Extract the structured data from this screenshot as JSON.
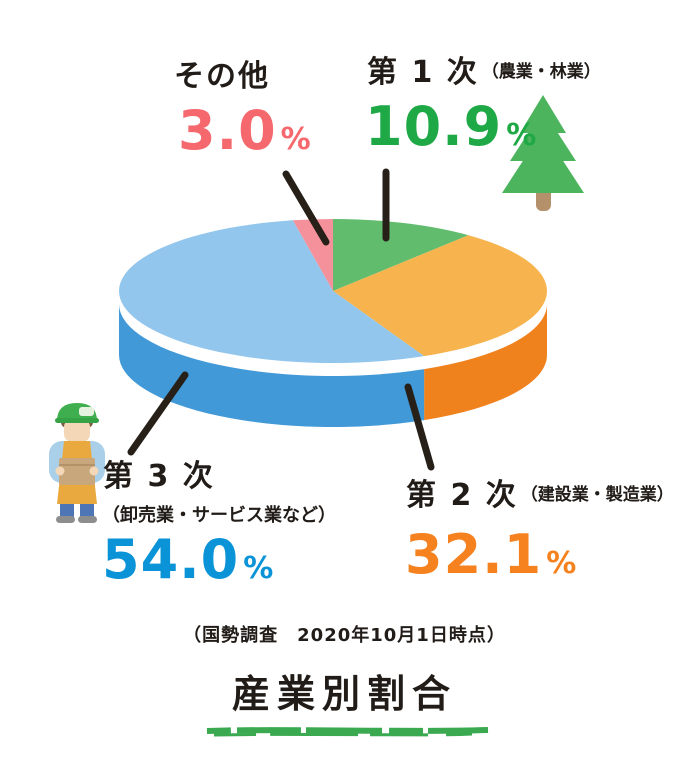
{
  "page": {
    "title": "産業別割合",
    "source_note": "（国勢調査　2020年10月1日時点）",
    "background_color": "#ffffff",
    "text_color": "#211c18",
    "title_underline_color": "#3aa94f",
    "leader_line_color": "#262019"
  },
  "chart_data": {
    "type": "pie",
    "style": "3d-ellipse",
    "title": "産業別割合",
    "source": "（国勢調査　2020年10月1日時点）",
    "unit": "%",
    "direction": "clockwise",
    "start_angle": "12-oclock",
    "slices": [
      {
        "id": "primary",
        "label": "第 1 次",
        "sublabel": "（農業・林業）",
        "value": 10.9,
        "display": "10.9",
        "top_color": "#62bc6e",
        "side_color": "#4aa55d",
        "number_color": "#1ea846"
      },
      {
        "id": "secondary",
        "label": "第 2 次",
        "sublabel": "（建設業・製造業）",
        "value": 32.1,
        "display": "32.1",
        "top_color": "#f7b44e",
        "side_color": "#f0821e",
        "number_color": "#f5821f"
      },
      {
        "id": "tertiary",
        "label": "第 3 次",
        "sublabel": "（卸売業・サービス業など）",
        "value": 54.0,
        "display": "54.0",
        "top_color": "#92c6ec",
        "side_color": "#4299d7",
        "number_color": "#0a93d6"
      },
      {
        "id": "other",
        "label": "その他",
        "sublabel": "",
        "value": 3.0,
        "display": "3.0",
        "top_color": "#f4919b",
        "side_color": "#f4919b",
        "number_color": "#f5696e"
      }
    ],
    "icons": [
      {
        "name": "pine-tree-icon"
      },
      {
        "name": "worker-icon"
      }
    ]
  }
}
